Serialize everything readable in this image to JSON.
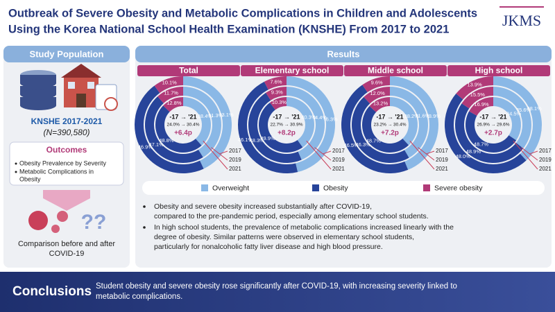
{
  "header": {
    "title": [
      "Outbreak of Severe Obesity and Metabolic Complications in Children and Adolescents",
      "Using the Korea National School Health Examination (KNSHE) From 2017 to 2021"
    ],
    "logo": "JKMS"
  },
  "left_panel": {
    "heading": "Study Population",
    "dataset": "KNSHE 2017-2021",
    "sample": "(N=390,580)",
    "outcomes_heading": "Outcomes",
    "outcomes": [
      [
        "Obesity Prevalence by Severity"
      ],
      [
        "Metabolic Complications in",
        "Obesity"
      ]
    ],
    "comparison": [
      "Comparison before and after",
      "COVID-19"
    ]
  },
  "results": {
    "heading": "Results",
    "bullets": [
      [
        "Obesity and severe obesity increased substantially after COVID-19,",
        "compared to the pre-pandemic period, especially among elementary school students."
      ],
      [
        "In high school students, the prevalence of metabolic complications increased linearly with the",
        "degree of obesity. Similar patterns were observed in elementary school students,",
        "particularly for nonalcoholic fatty liver disease and high blood pressure."
      ]
    ]
  },
  "conclusions": {
    "heading": "Conclusions",
    "text": [
      "Student obesity and severe obesity rose significantly after COVID-19, with increasing severity linked to",
      "metabolic complications."
    ]
  },
  "chart_data": [
    {
      "type": "donut",
      "title": "Total",
      "rings": [
        "2017",
        "2019",
        "2021"
      ],
      "center": [
        "-17 → '21",
        "24.0% → 30.4%",
        "+6.4p"
      ],
      "series": [
        {
          "name": "Overweight",
          "color": "#8ab8e6",
          "values": [
            43.1,
            41.3,
            38.4
          ],
          "value_labels": [
            "43.1%",
            "41.3%",
            "38.4%"
          ]
        },
        {
          "name": "Obesity",
          "color": "#27449a",
          "values": [
            46.9,
            47.1,
            48.8
          ],
          "value_labels": [
            "46.9%",
            "47.1%",
            "48.8%"
          ]
        },
        {
          "name": "Severe obesity",
          "color": "#b13a78",
          "values": [
            10.1,
            11.7,
            12.8
          ],
          "value_labels": [
            "10.1%",
            "11.7%",
            "12.8%"
          ]
        }
      ]
    },
    {
      "type": "donut",
      "title": "Elementary school",
      "rings": [
        "2017",
        "2019",
        "2021"
      ],
      "center": [
        "-17 → '21",
        "22.7% → 30.9%",
        "+8.2p"
      ],
      "series": [
        {
          "color": "#8ab8e6",
          "values": [
            46.3,
            44.4,
            40.3
          ],
          "value_labels": [
            "46.3%",
            "44.4%",
            "40.3%"
          ]
        },
        {
          "color": "#27449a",
          "values": [
            46.1,
            48.3,
            49.9
          ],
          "value_labels": [
            "46.1%",
            "48.3%",
            "49.9%"
          ]
        },
        {
          "color": "#b13a78",
          "values": [
            7.6,
            9.3,
            10.3
          ],
          "value_labels": [
            "7.6%",
            "9.3%",
            "10.3%"
          ]
        }
      ]
    },
    {
      "type": "donut",
      "title": "Middle school",
      "rings": [
        "2017",
        "2019",
        "2021"
      ],
      "center": [
        "-17 → '21",
        "23.2% → 30.4%",
        "+7.2p"
      ],
      "series": [
        {
          "color": "#8ab8e6",
          "values": [
            43.9,
            41.6,
            38.2
          ],
          "value_labels": [
            "43.9%",
            "41.6%",
            "38.2%"
          ]
        },
        {
          "color": "#27449a",
          "values": [
            46.5,
            46.3,
            48.7
          ],
          "value_labels": [
            "46.5%",
            "46.3%",
            "48.7%"
          ]
        },
        {
          "color": "#b13a78",
          "values": [
            9.6,
            12.0,
            13.2
          ],
          "value_labels": [
            "9.6%",
            "12.0%",
            "13.2%"
          ]
        }
      ]
    },
    {
      "type": "donut",
      "title": "High school",
      "rings": [
        "2017",
        "2019",
        "2021"
      ],
      "center": [
        "-17 → '21",
        "26.9% → 29.6%",
        "+2.7p"
      ],
      "series": [
        {
          "color": "#8ab8e6",
          "values": [
            38.1,
            35.6,
            34.5
          ],
          "value_labels": [
            "38.1%",
            "35.6%",
            "34.5%"
          ]
        },
        {
          "color": "#27449a",
          "values": [
            48.0,
            48.9,
            48.7
          ],
          "value_labels": [
            "48.0%",
            "48.9%",
            "48.7%"
          ]
        },
        {
          "color": "#b13a78",
          "values": [
            13.9,
            15.5,
            16.9
          ],
          "value_labels": [
            "13.9%",
            "15.5%",
            "16.9%"
          ]
        }
      ]
    }
  ]
}
